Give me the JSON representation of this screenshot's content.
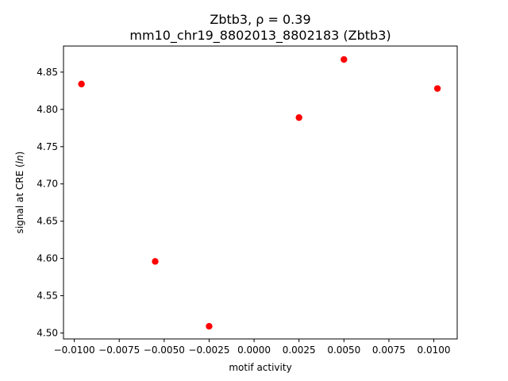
{
  "chart_data": {
    "type": "scatter",
    "title_line1": "Zbtb3, ρ = 0.39",
    "title_line2": "mm10_chr19_8802013_8802183 (Zbtb3)",
    "xlabel": "motif activity",
    "ylabel_prefix": "signal at CRE (",
    "ylabel_italic": "ln",
    "ylabel_suffix": ")",
    "xlim": [
      -0.0106,
      0.0113
    ],
    "ylim": [
      4.492,
      4.885
    ],
    "x_ticks": [
      "-0.0100",
      "-0.0075",
      "-0.0050",
      "-0.0025",
      "0.0000",
      "0.0025",
      "0.0050",
      "0.0075",
      "0.0100"
    ],
    "x_tick_labels": [
      "−0.0100",
      "−0.0075",
      "−0.0050",
      "−0.0025",
      "0.0000",
      "0.0025",
      "0.0050",
      "0.0075",
      "0.0100"
    ],
    "y_ticks": [
      "4.50",
      "4.55",
      "4.60",
      "4.65",
      "4.70",
      "4.75",
      "4.80",
      "4.85"
    ],
    "grid": false,
    "marker_color": "#ff0000",
    "points": [
      {
        "x": -0.0096,
        "y": 4.834
      },
      {
        "x": -0.0055,
        "y": 4.596
      },
      {
        "x": -0.0025,
        "y": 4.509
      },
      {
        "x": 0.0025,
        "y": 4.789
      },
      {
        "x": 0.005,
        "y": 4.867
      },
      {
        "x": 0.0102,
        "y": 4.828
      }
    ]
  }
}
